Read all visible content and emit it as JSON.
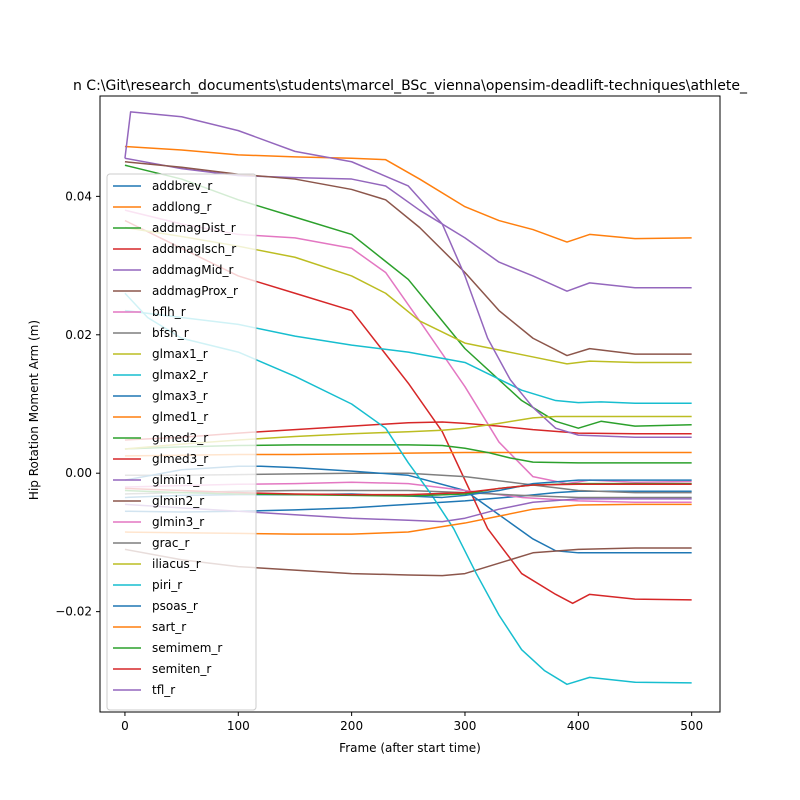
{
  "chart_data": {
    "type": "line",
    "title": "n C:\\Git\\research_documents\\students\\marcel_BSc_vienna\\opensim-deadlift-techniques\\athlete_",
    "xlabel": "Frame (after start time)",
    "ylabel": "Hip Rotation Moment Arm (m)",
    "xlim": [
      -22,
      525
    ],
    "ylim": [
      -0.0345,
      0.0545
    ],
    "xticks": [
      0,
      100,
      200,
      300,
      400,
      500
    ],
    "xtick_labels": [
      "0",
      "100",
      "200",
      "300",
      "400",
      "500"
    ],
    "yticks": [
      -0.02,
      0.0,
      0.02,
      0.04
    ],
    "ytick_labels": [
      "−0.02",
      "0.00",
      "0.02",
      "0.04"
    ],
    "grid": false,
    "legend_position": "left",
    "series": [
      {
        "name": "addbrev_r",
        "color": "#1f77b4",
        "x": [
          0,
          50,
          100,
          150,
          200,
          250,
          300,
          350,
          380,
          400,
          450,
          500
        ],
        "y": [
          -0.0055,
          -0.0056,
          -0.0055,
          -0.0053,
          -0.005,
          -0.0045,
          -0.004,
          -0.0033,
          -0.0028,
          -0.0026,
          -0.0026,
          -0.0026
        ]
      },
      {
        "name": "addlong_r",
        "color": "#ff7f0e",
        "x": [
          0,
          50,
          100,
          150,
          200,
          230,
          260,
          300,
          330,
          360,
          390,
          410,
          450,
          500
        ],
        "y": [
          0.0472,
          0.0467,
          0.046,
          0.0457,
          0.0455,
          0.0453,
          0.0425,
          0.0385,
          0.0365,
          0.0352,
          0.0334,
          0.0345,
          0.0339,
          0.034
        ]
      },
      {
        "name": "addmagDist_r",
        "color": "#2ca02c",
        "x": [
          0,
          50,
          100,
          150,
          200,
          250,
          300,
          350,
          380,
          400,
          420,
          450,
          500
        ],
        "y": [
          0.0445,
          0.0425,
          0.0395,
          0.037,
          0.0345,
          0.028,
          0.018,
          0.0105,
          0.0075,
          0.0065,
          0.0075,
          0.0068,
          0.007
        ]
      },
      {
        "name": "addmagIsch_r",
        "color": "#d62728",
        "x": [
          0,
          50,
          100,
          150,
          200,
          250,
          280,
          300,
          320,
          350,
          380,
          395,
          410,
          450,
          500
        ],
        "y": [
          0.0365,
          0.0325,
          0.0285,
          0.026,
          0.0235,
          0.013,
          0.006,
          -0.001,
          -0.008,
          -0.0145,
          -0.0175,
          -0.0188,
          -0.0175,
          -0.0182,
          -0.0183
        ]
      },
      {
        "name": "addmagMid_r",
        "color": "#9467bd",
        "x": [
          0,
          50,
          100,
          150,
          200,
          230,
          260,
          300,
          330,
          360,
          390,
          410,
          450,
          500
        ],
        "y": [
          0.0455,
          0.044,
          0.043,
          0.0427,
          0.0425,
          0.0415,
          0.038,
          0.034,
          0.0305,
          0.0285,
          0.0263,
          0.0275,
          0.0268,
          0.0268
        ]
      },
      {
        "name": "addmagProx_r",
        "color": "#8c564b",
        "x": [
          0,
          50,
          100,
          150,
          200,
          230,
          260,
          300,
          330,
          360,
          390,
          410,
          450,
          500
        ],
        "y": [
          0.045,
          0.0442,
          0.0432,
          0.0425,
          0.041,
          0.0395,
          0.0355,
          0.029,
          0.0235,
          0.0195,
          0.017,
          0.018,
          0.0172,
          0.0172
        ]
      },
      {
        "name": "bflh_r",
        "color": "#e377c2",
        "x": [
          0,
          50,
          100,
          150,
          200,
          230,
          260,
          300,
          330,
          360,
          390,
          410,
          450,
          500
        ],
        "y": [
          0.038,
          0.036,
          0.0345,
          0.034,
          0.0325,
          0.029,
          0.022,
          0.0125,
          0.0045,
          -0.0005,
          -0.0015,
          -0.001,
          -0.0013,
          -0.0012
        ]
      },
      {
        "name": "bfsh_r",
        "color": "#7f7f7f",
        "x": [
          0,
          50,
          100,
          150,
          200,
          250,
          300,
          350,
          400,
          450,
          500
        ],
        "y": [
          -0.0003,
          -0.0003,
          -0.0002,
          -0.0001,
          0.0,
          0.0,
          -0.0005,
          -0.0015,
          -0.0025,
          -0.0028,
          -0.0028
        ]
      },
      {
        "name": "glmax1_r",
        "color": "#bcbd22",
        "x": [
          0,
          50,
          100,
          150,
          200,
          230,
          260,
          300,
          330,
          360,
          390,
          410,
          450,
          500
        ],
        "y": [
          0.0355,
          0.0342,
          0.0328,
          0.0312,
          0.0285,
          0.026,
          0.022,
          0.0188,
          0.0178,
          0.0168,
          0.0158,
          0.0162,
          0.016,
          0.016
        ]
      },
      {
        "name": "glmax2_r",
        "color": "#17becf",
        "x": [
          0,
          50,
          100,
          150,
          200,
          250,
          300,
          350,
          380,
          400,
          420,
          450,
          500
        ],
        "y": [
          0.0235,
          0.0225,
          0.0215,
          0.0198,
          0.0185,
          0.0175,
          0.016,
          0.012,
          0.0105,
          0.0102,
          0.0103,
          0.0101,
          0.0101
        ]
      },
      {
        "name": "glmax3_r",
        "color": "#1f77b4",
        "x": [
          0,
          50,
          100,
          120,
          150,
          200,
          250,
          300,
          330,
          360,
          380,
          400,
          450,
          500
        ],
        "y": [
          -0.001,
          0.0005,
          0.001,
          0.001,
          0.0008,
          0.0003,
          -0.0003,
          -0.0025,
          -0.006,
          -0.0095,
          -0.0112,
          -0.0115,
          -0.0115,
          -0.0115
        ]
      },
      {
        "name": "glmed1_r",
        "color": "#ff7f0e",
        "x": [
          0,
          50,
          100,
          150,
          200,
          250,
          300,
          350,
          400,
          450,
          500
        ],
        "y": [
          0.0025,
          0.0026,
          0.0027,
          0.0027,
          0.0028,
          0.0029,
          0.003,
          0.003,
          0.003,
          0.003,
          0.003
        ]
      },
      {
        "name": "glmed2_r",
        "color": "#2ca02c",
        "x": [
          0,
          50,
          100,
          150,
          200,
          250,
          280,
          300,
          320,
          340,
          360,
          400,
          450,
          500
        ],
        "y": [
          0.0035,
          0.0038,
          0.004,
          0.0041,
          0.0041,
          0.0041,
          0.004,
          0.0036,
          0.003,
          0.0022,
          0.0016,
          0.0015,
          0.0015,
          0.0015
        ]
      },
      {
        "name": "glmed3_r",
        "color": "#d62728",
        "x": [
          0,
          50,
          100,
          150,
          200,
          250,
          280,
          300,
          330,
          360,
          400,
          450,
          500
        ],
        "y": [
          0.0048,
          0.0052,
          0.0058,
          0.0063,
          0.0068,
          0.0073,
          0.0074,
          0.0072,
          0.0068,
          0.0063,
          0.0058,
          0.0057,
          0.0057
        ]
      },
      {
        "name": "glmin1_r",
        "color": "#9467bd",
        "x": [
          0,
          5,
          50,
          100,
          150,
          200,
          250,
          280,
          300,
          320,
          340,
          360,
          380,
          400,
          450,
          500
        ],
        "y": [
          0.0455,
          0.0522,
          0.0515,
          0.0495,
          0.0465,
          0.045,
          0.0415,
          0.036,
          0.0285,
          0.0195,
          0.0135,
          0.0095,
          0.0065,
          0.0055,
          0.0052,
          0.0052
        ]
      },
      {
        "name": "glmin2_r",
        "color": "#8c564b",
        "x": [
          0,
          50,
          100,
          150,
          200,
          250,
          280,
          300,
          330,
          360,
          400,
          450,
          500
        ],
        "y": [
          -0.011,
          -0.0125,
          -0.0135,
          -0.014,
          -0.0145,
          -0.0147,
          -0.0148,
          -0.0145,
          -0.013,
          -0.0115,
          -0.011,
          -0.0108,
          -0.0108
        ]
      },
      {
        "name": "glmin3_r",
        "color": "#e377c2",
        "x": [
          0,
          50,
          100,
          150,
          200,
          250,
          300,
          350,
          400,
          450,
          500
        ],
        "y": [
          -0.002,
          -0.0018,
          -0.0016,
          -0.0015,
          -0.0013,
          -0.0015,
          -0.0025,
          -0.0035,
          -0.004,
          -0.0042,
          -0.0042
        ]
      },
      {
        "name": "grac_r",
        "color": "#7f7f7f",
        "x": [
          0,
          50,
          100,
          150,
          200,
          250,
          300,
          350,
          400,
          450,
          500
        ],
        "y": [
          -0.003,
          -0.0028,
          -0.0026,
          -0.0025,
          -0.0025,
          -0.0025,
          -0.0028,
          -0.0032,
          -0.0035,
          -0.0035,
          -0.0035
        ]
      },
      {
        "name": "iliacus_r",
        "color": "#bcbd22",
        "x": [
          0,
          50,
          100,
          150,
          200,
          250,
          280,
          300,
          330,
          360,
          380,
          400,
          450,
          500
        ],
        "y": [
          0.0035,
          0.0042,
          0.0048,
          0.0053,
          0.0057,
          0.006,
          0.0062,
          0.0065,
          0.0072,
          0.008,
          0.0082,
          0.0082,
          0.0082,
          0.0082
        ]
      },
      {
        "name": "piri_r",
        "color": "#17becf",
        "x": [
          0,
          20,
          50,
          100,
          150,
          200,
          230,
          250,
          270,
          290,
          310,
          330,
          350,
          370,
          390,
          410,
          450,
          500
        ],
        "y": [
          0.026,
          0.0225,
          0.0195,
          0.0175,
          0.014,
          0.01,
          0.0065,
          0.0015,
          -0.003,
          -0.008,
          -0.0145,
          -0.0205,
          -0.0255,
          -0.0285,
          -0.0305,
          -0.0295,
          -0.0302,
          -0.0303
        ]
      },
      {
        "name": "psoas_r",
        "color": "#1f77b4",
        "x": [
          0,
          50,
          100,
          150,
          200,
          250,
          280,
          300,
          330,
          360,
          400,
          450,
          500
        ],
        "y": [
          -0.0035,
          -0.0032,
          -0.0031,
          -0.0031,
          -0.003,
          -0.0033,
          -0.0035,
          -0.0032,
          -0.0025,
          -0.0015,
          -0.001,
          -0.001,
          -0.001
        ]
      },
      {
        "name": "sart_r",
        "color": "#ff7f0e",
        "x": [
          0,
          50,
          100,
          150,
          200,
          250,
          300,
          330,
          360,
          400,
          450,
          500
        ],
        "y": [
          -0.0085,
          -0.0086,
          -0.0087,
          -0.0088,
          -0.0088,
          -0.0085,
          -0.0072,
          -0.0062,
          -0.0052,
          -0.0046,
          -0.0045,
          -0.0045
        ]
      },
      {
        "name": "semimem_r",
        "color": "#2ca02c",
        "x": [
          0,
          50,
          100,
          150,
          200,
          250,
          300,
          330,
          360,
          400,
          450,
          500
        ],
        "y": [
          -0.0025,
          -0.0028,
          -0.003,
          -0.0031,
          -0.0032,
          -0.0033,
          -0.003,
          -0.0022,
          -0.0017,
          -0.0015,
          -0.0015,
          -0.0015
        ]
      },
      {
        "name": "semiten_r",
        "color": "#d62728",
        "x": [
          0,
          50,
          100,
          150,
          200,
          250,
          300,
          330,
          360,
          400,
          450,
          500
        ],
        "y": [
          -0.0022,
          -0.0025,
          -0.0028,
          -0.003,
          -0.0031,
          -0.0031,
          -0.0028,
          -0.0022,
          -0.0017,
          -0.0016,
          -0.0016,
          -0.0016
        ]
      },
      {
        "name": "tfl_r",
        "color": "#9467bd",
        "x": [
          0,
          50,
          100,
          150,
          200,
          250,
          280,
          300,
          330,
          360,
          400,
          450,
          500
        ],
        "y": [
          -0.0045,
          -0.005,
          -0.0055,
          -0.006,
          -0.0065,
          -0.0068,
          -0.007,
          -0.0065,
          -0.0052,
          -0.0042,
          -0.0037,
          -0.0037,
          -0.0037
        ]
      }
    ]
  }
}
